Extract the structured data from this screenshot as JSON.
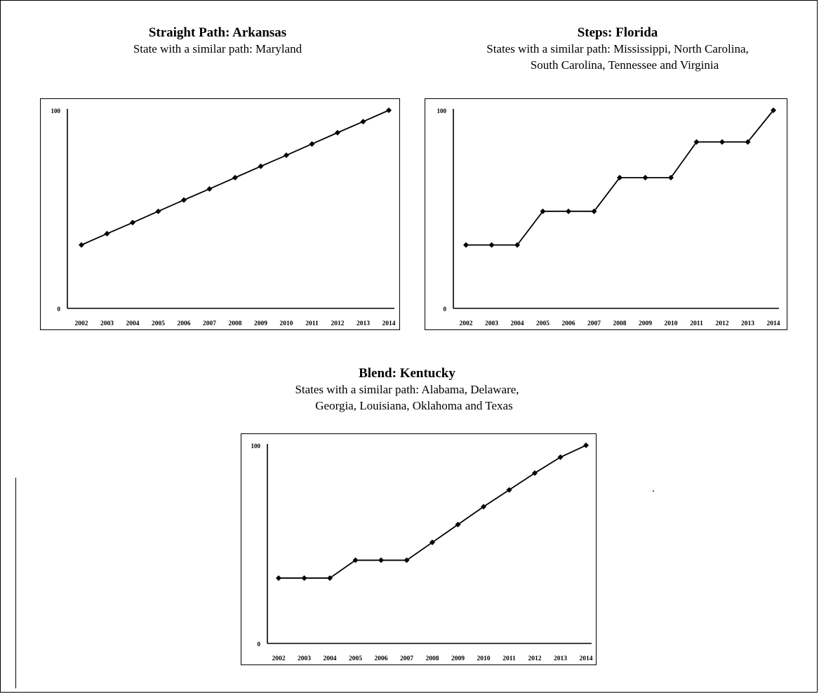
{
  "headings": {
    "arkansas": {
      "title": "Straight Path: Arkansas",
      "subtitle": "State with a similar path: Maryland"
    },
    "florida": {
      "title": "Steps: Florida",
      "subtitle_line1": "States with a similar path: Mississippi, North Carolina,",
      "subtitle_line2": "South Carolina, Tennessee and Virginia"
    },
    "kentucky": {
      "title": "Blend: Kentucky",
      "subtitle_line1": "States with a similar path: Alabama, Delaware,",
      "subtitle_line2": "Georgia, Louisiana, Oklahoma and Texas"
    }
  },
  "chart_data": [
    {
      "type": "line",
      "title": "Straight Path: Arkansas",
      "x": [
        "2002",
        "2003",
        "2004",
        "2005",
        "2006",
        "2007",
        "2008",
        "2009",
        "2010",
        "2011",
        "2012",
        "2013",
        "2014"
      ],
      "series": [
        {
          "values": [
            32,
            37.7,
            43.3,
            49,
            54.7,
            60.3,
            66,
            71.7,
            77.3,
            83,
            88.7,
            94.3,
            100
          ]
        }
      ],
      "ylim": [
        0,
        100
      ],
      "yticks": [
        "0",
        "100"
      ],
      "grid": false,
      "line_color": "#000000"
    },
    {
      "type": "line",
      "title": "Steps: Florida",
      "x": [
        "2002",
        "2003",
        "2004",
        "2005",
        "2006",
        "2007",
        "2008",
        "2009",
        "2010",
        "2011",
        "2012",
        "2013",
        "2014"
      ],
      "series": [
        {
          "values": [
            32,
            32,
            32,
            49,
            49,
            49,
            66,
            66,
            66,
            84,
            84,
            84,
            100
          ]
        }
      ],
      "ylim": [
        0,
        100
      ],
      "yticks": [
        "0",
        "100"
      ],
      "grid": false,
      "line_color": "#000000"
    },
    {
      "type": "line",
      "title": "Blend: Kentucky",
      "x": [
        "2002",
        "2003",
        "2004",
        "2005",
        "2006",
        "2007",
        "2008",
        "2009",
        "2010",
        "2011",
        "2012",
        "2013",
        "2014"
      ],
      "series": [
        {
          "values": [
            33,
            33,
            33,
            42,
            42,
            42,
            51,
            60,
            69,
            77.5,
            86,
            94,
            100
          ]
        }
      ],
      "ylim": [
        0,
        100
      ],
      "yticks": [
        "0",
        "100"
      ],
      "grid": false,
      "line_color": "#000000"
    }
  ]
}
